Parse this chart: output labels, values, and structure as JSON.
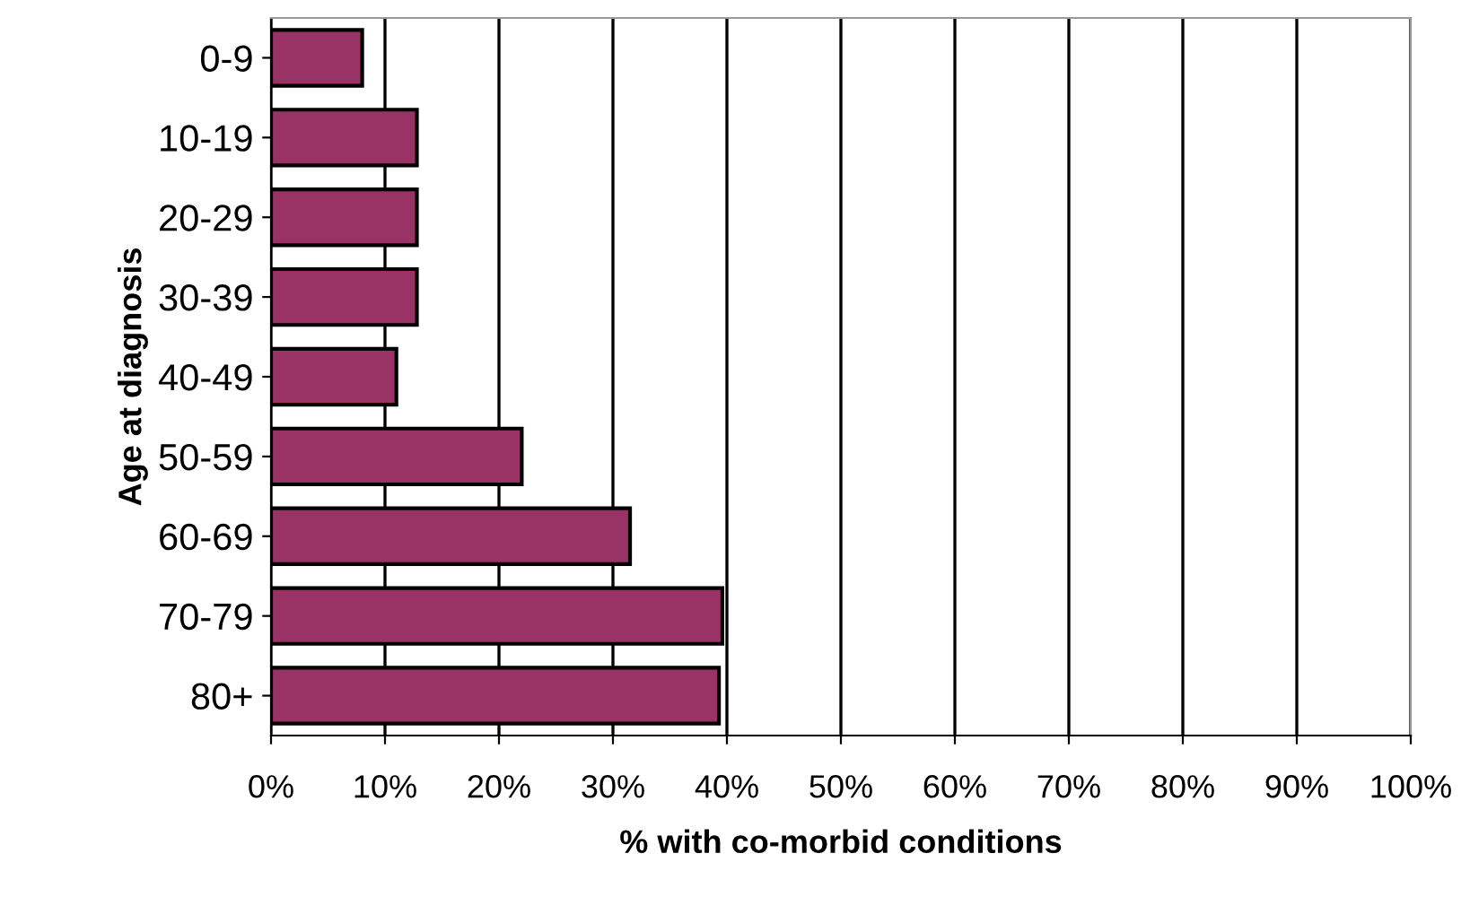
{
  "chart_data": {
    "type": "bar",
    "orientation": "horizontal",
    "xlabel": "% with co-morbid conditions",
    "ylabel": "Age at diagnosis",
    "categories": [
      "0-9",
      "10-19",
      "20-29",
      "30-39",
      "40-49",
      "50-59",
      "60-69",
      "70-79",
      "80+"
    ],
    "values": [
      8,
      12.8,
      12.8,
      12.8,
      11,
      22,
      31.5,
      39.6,
      39.3
    ],
    "color": "#993366",
    "xlim": [
      0,
      100
    ],
    "xticks": [
      {
        "value": 0,
        "label": "0%"
      },
      {
        "value": 10,
        "label": "10%"
      },
      {
        "value": 20,
        "label": "20%"
      },
      {
        "value": 30,
        "label": "30%"
      },
      {
        "value": 40,
        "label": "40%"
      },
      {
        "value": 50,
        "label": "50%"
      },
      {
        "value": 60,
        "label": "60%"
      },
      {
        "value": 70,
        "label": "70%"
      },
      {
        "value": 80,
        "label": "80%"
      },
      {
        "value": 90,
        "label": "90%"
      },
      {
        "value": 100,
        "label": "100%"
      }
    ],
    "grid": "x"
  }
}
